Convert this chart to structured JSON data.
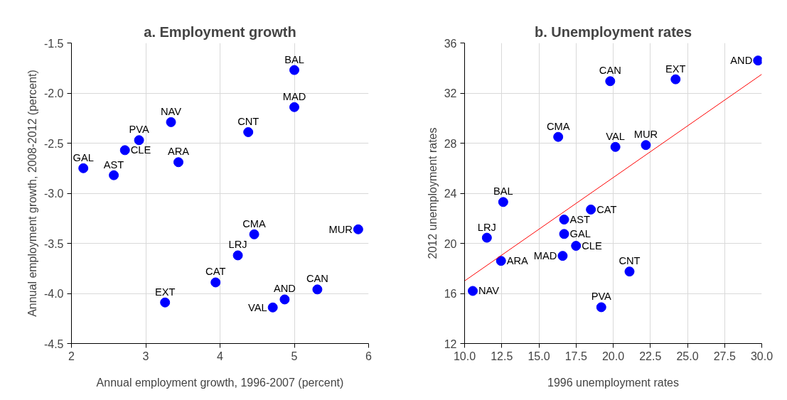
{
  "chart_data": [
    {
      "type": "scatter",
      "title": "a. Employment growth",
      "xlabel": "Annual employment growth, 1996-2007 (percent)",
      "ylabel": "Annual employment growth, 2008-2012 (percent)",
      "xlim": [
        2,
        6
      ],
      "ylim": [
        -4.5,
        -1.5
      ],
      "xticks": [
        2,
        3,
        4,
        5,
        6
      ],
      "yticks": [
        {
          "value": -1.5,
          "label": "-1.5"
        },
        {
          "value": -2,
          "label": "-2.0"
        },
        {
          "value": -2.5,
          "label": "-2.5"
        },
        {
          "value": -3,
          "label": "-3.0"
        },
        {
          "value": -3.5,
          "label": "-3.5"
        },
        {
          "value": -4,
          "label": "-4.0"
        },
        {
          "value": -4.5,
          "label": "-4.5"
        }
      ],
      "grid": true,
      "marker": "circle",
      "series": [
        {
          "color": "#0000ff",
          "x": [
            5.0,
            5.0,
            3.34,
            4.38,
            2.91,
            2.72,
            3.44,
            2.16,
            2.57,
            4.46,
            5.86,
            4.24,
            3.94,
            5.31,
            4.87,
            4.71,
            3.26
          ],
          "values": [
            -1.77,
            -2.14,
            -2.29,
            -2.39,
            -2.47,
            -2.57,
            -2.69,
            -2.75,
            -2.82,
            -3.41,
            -3.36,
            -3.62,
            -3.89,
            -3.96,
            -4.06,
            -4.14,
            -4.09
          ]
        }
      ],
      "annotations": [
        {
          "text": "BAL",
          "x": 5.0,
          "y": -1.77
        },
        {
          "text": "MAD",
          "x": 5.0,
          "y": -2.14
        },
        {
          "text": "NAV",
          "x": 3.34,
          "y": -2.29
        },
        {
          "text": "CNT",
          "x": 4.38,
          "y": -2.39
        },
        {
          "text": "PVA",
          "x": 2.91,
          "y": -2.47
        },
        {
          "text": "CLE",
          "x": 2.72,
          "y": -2.57
        },
        {
          "text": "ARA",
          "x": 3.44,
          "y": -2.69
        },
        {
          "text": "GAL",
          "x": 2.16,
          "y": -2.75
        },
        {
          "text": "AST",
          "x": 2.57,
          "y": -2.82
        },
        {
          "text": "CMA",
          "x": 4.46,
          "y": -3.41
        },
        {
          "text": "MUR",
          "x": 5.86,
          "y": -3.36
        },
        {
          "text": "LRJ",
          "x": 4.24,
          "y": -3.62
        },
        {
          "text": "CAT",
          "x": 3.94,
          "y": -3.89
        },
        {
          "text": "CAN",
          "x": 5.31,
          "y": -3.96
        },
        {
          "text": "AND",
          "x": 4.87,
          "y": -4.06
        },
        {
          "text": "VAL",
          "x": 4.71,
          "y": -4.14
        },
        {
          "text": "EXT",
          "x": 3.26,
          "y": -4.09
        }
      ]
    },
    {
      "type": "scatter",
      "title": "b. Unemployment rates",
      "xlabel": "1996 unemployment rates",
      "ylabel": "2012 unemployment rates",
      "xlim": [
        10,
        30
      ],
      "ylim": [
        12,
        36
      ],
      "xticks": [
        {
          "value": 10,
          "label": "10.0"
        },
        {
          "value": 12.5,
          "label": "12.5"
        },
        {
          "value": 15,
          "label": "15.0"
        },
        {
          "value": 17.5,
          "label": "17.5"
        },
        {
          "value": 20,
          "label": "20.0"
        },
        {
          "value": 22.5,
          "label": "22.5"
        },
        {
          "value": 25,
          "label": "25.0"
        },
        {
          "value": 27.5,
          "label": "27.5"
        },
        {
          "value": 30,
          "label": "30.0"
        }
      ],
      "yticks": [
        12,
        16,
        20,
        24,
        28,
        32,
        36
      ],
      "grid": true,
      "marker": "circle",
      "series": [
        {
          "color": "#0000ff",
          "x": [
            29.75,
            24.2,
            19.8,
            16.3,
            20.15,
            22.2,
            12.6,
            18.5,
            16.7,
            16.7,
            11.5,
            17.5,
            16.6,
            12.45,
            21.1,
            10.55,
            19.2
          ],
          "values": [
            34.6,
            33.1,
            32.95,
            28.5,
            27.7,
            27.85,
            23.3,
            22.7,
            21.9,
            20.75,
            20.45,
            19.8,
            19.0,
            18.6,
            17.75,
            16.2,
            14.9
          ]
        },
        {
          "type": "line",
          "color": "#ff0000",
          "marker": "none",
          "x": [
            10,
            30
          ],
          "values": [
            17.0,
            33.5
          ]
        }
      ],
      "annotations": [
        {
          "text": "AND",
          "x": 29.75,
          "y": 34.6
        },
        {
          "text": "EXT",
          "x": 24.2,
          "y": 33.1
        },
        {
          "text": "CAN",
          "x": 19.8,
          "y": 32.95
        },
        {
          "text": "CMA",
          "x": 16.3,
          "y": 28.5
        },
        {
          "text": "VAL",
          "x": 20.15,
          "y": 27.7
        },
        {
          "text": "MUR",
          "x": 22.2,
          "y": 27.85
        },
        {
          "text": "BAL",
          "x": 12.6,
          "y": 23.3
        },
        {
          "text": "CAT",
          "x": 18.5,
          "y": 22.7
        },
        {
          "text": "AST",
          "x": 16.7,
          "y": 21.9
        },
        {
          "text": "GAL",
          "x": 16.7,
          "y": 20.75
        },
        {
          "text": "LRJ",
          "x": 11.5,
          "y": 20.45
        },
        {
          "text": "CLE",
          "x": 17.5,
          "y": 19.8
        },
        {
          "text": "MAD",
          "x": 16.6,
          "y": 19.0
        },
        {
          "text": "ARA",
          "x": 12.45,
          "y": 18.6
        },
        {
          "text": "CNT",
          "x": 21.1,
          "y": 17.75
        },
        {
          "text": "NAV",
          "x": 10.55,
          "y": 16.2
        },
        {
          "text": "PVA",
          "x": 19.2,
          "y": 14.9
        }
      ]
    }
  ]
}
